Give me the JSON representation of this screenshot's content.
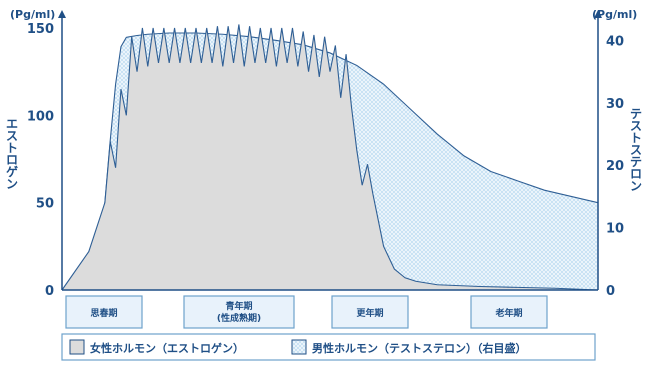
{
  "chart_data": {
    "type": "area",
    "xlabel": "",
    "stages": [
      "思春期",
      "青年期\n(性成熟期)",
      "更年期",
      "老年期"
    ],
    "y_left": {
      "unit": "(Pg/ml)",
      "label": "エストロゲン",
      "ylim": [
        0,
        150
      ],
      "ticks": [
        0,
        50,
        100,
        150
      ]
    },
    "y_right": {
      "unit": "(Pg/ml)",
      "label": "テストステロン",
      "ylim": [
        0,
        42
      ],
      "ticks": [
        0,
        10,
        20,
        30,
        40
      ]
    },
    "x_range": [
      0,
      100
    ],
    "series": [
      {
        "name": "女性ホルモン（エストロゲン）",
        "axis": "left",
        "fill": "#dcdcdc",
        "stroke": "#2f5f95",
        "x": [
          0,
          5,
          8,
          9,
          10,
          11,
          12,
          13,
          14,
          15,
          16,
          17,
          18,
          19,
          20,
          21,
          22,
          23,
          24,
          25,
          26,
          27,
          28,
          29,
          30,
          31,
          32,
          33,
          34,
          35,
          36,
          37,
          38,
          39,
          40,
          41,
          42,
          43,
          44,
          45,
          46,
          47,
          48,
          49,
          50,
          51,
          52,
          53,
          54,
          55,
          56,
          57,
          58,
          59,
          60,
          62,
          64,
          66,
          70,
          78,
          85,
          92,
          100
        ],
        "values": [
          0,
          22,
          50,
          85,
          70,
          115,
          100,
          145,
          125,
          150,
          128,
          150,
          130,
          150,
          130,
          150,
          130,
          150,
          130,
          150,
          130,
          150,
          130,
          151,
          128,
          151,
          130,
          152,
          128,
          151,
          130,
          150,
          130,
          150,
          128,
          150,
          130,
          150,
          128,
          148,
          125,
          146,
          122,
          145,
          125,
          140,
          110,
          135,
          105,
          80,
          60,
          72,
          55,
          40,
          25,
          12,
          7,
          5,
          3,
          2,
          1.5,
          1,
          0
        ]
      },
      {
        "name": "男性ホルモン（テストステロン）",
        "axis": "right",
        "legend_suffix": "（右目盛）",
        "fill": "#c3dff2",
        "stroke": "#2f5f95",
        "x": [
          0,
          6,
          8,
          9,
          10,
          11,
          12,
          14,
          16,
          20,
          25,
          30,
          35,
          40,
          45,
          50,
          55,
          60,
          65,
          70,
          75,
          80,
          85,
          90,
          95,
          100
        ],
        "values": [
          0,
          6,
          14,
          24,
          33,
          39,
          40.5,
          40.8,
          41,
          41.2,
          41.2,
          41,
          40.6,
          40,
          39.3,
          38,
          36,
          33,
          29,
          25,
          21.5,
          19,
          17.5,
          16,
          15,
          14
        ]
      }
    ],
    "legend": [
      "女性ホルモン（エストロゲン）",
      "男性ホルモン（テストステロン）（右目盛）"
    ]
  },
  "colors": {
    "axis": "#1f4f86",
    "estrogen_fill": "#dcdcdc",
    "testosterone_fill": "#c3dff2",
    "stage_box_fill": "#e8f2fb",
    "stage_box_stroke": "#6da2cc"
  }
}
